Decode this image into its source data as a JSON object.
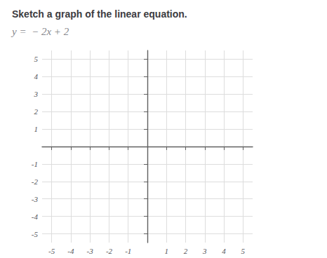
{
  "chart_data": {
    "type": "line",
    "title": "Sketch a graph of the linear equation.",
    "subtitle": "y =  − 2x + 2",
    "xlim": [
      -5.5,
      5.5
    ],
    "ylim": [
      -5.5,
      5.5
    ],
    "xticks": [
      -5,
      -4,
      -3,
      -2,
      -1,
      1,
      2,
      3,
      4,
      5
    ],
    "yticks": [
      -5,
      -4,
      -3,
      -2,
      -1,
      1,
      2,
      3,
      4,
      5
    ],
    "grid": true
  }
}
